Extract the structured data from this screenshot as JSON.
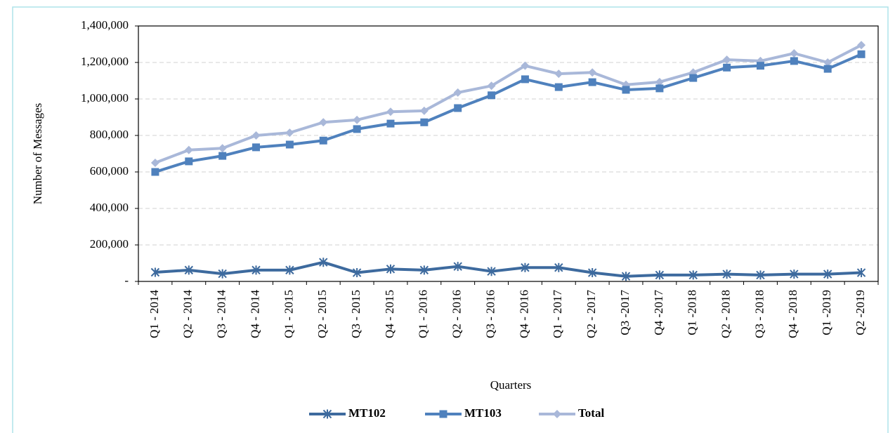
{
  "chart_data": {
    "type": "line",
    "x_label": "Quarters",
    "y_label": "Number of Messages",
    "categories": [
      "Q1 - 2014",
      "Q2 - 2014",
      "Q3 - 2014",
      "Q4 - 2014",
      "Q1 - 2015",
      "Q2 - 2015",
      "Q3 - 2015",
      "Q4 - 2015",
      "Q1 - 2016",
      "Q2 - 2016",
      "Q3 - 2016",
      "Q4 - 2016",
      "Q1 - 2017",
      "Q2 - 2017",
      "Q3 -2017",
      "Q4 -2017",
      "Q1 -2018",
      "Q2 - 2018",
      "Q3 - 2018",
      "Q4 - 2018",
      "Q1 -2019",
      "Q2 -2019"
    ],
    "series": [
      {
        "name": "MT102",
        "color": "#3d6a9e",
        "marker": "star",
        "values": [
          50000,
          62000,
          42000,
          62000,
          62000,
          105000,
          48000,
          68000,
          62000,
          82000,
          55000,
          76000,
          76000,
          48000,
          28000,
          35000,
          35000,
          40000,
          35000,
          40000,
          40000,
          48000
        ]
      },
      {
        "name": "MT103",
        "color": "#4f81bd",
        "marker": "square",
        "values": [
          600000,
          658000,
          688000,
          735000,
          750000,
          772000,
          835000,
          865000,
          872000,
          950000,
          1020000,
          1108000,
          1065000,
          1092000,
          1050000,
          1058000,
          1115000,
          1172000,
          1182000,
          1208000,
          1165000,
          1245000
        ]
      },
      {
        "name": "Total",
        "color": "#a9b8d9",
        "marker": "diamond",
        "values": [
          650000,
          720000,
          730000,
          800000,
          815000,
          872000,
          885000,
          930000,
          935000,
          1035000,
          1072000,
          1182000,
          1138000,
          1145000,
          1078000,
          1093000,
          1145000,
          1215000,
          1208000,
          1250000,
          1200000,
          1295000
        ]
      }
    ],
    "ylim": [
      0,
      1400000
    ],
    "yticks": [
      {
        "value": 0,
        "label": "-"
      },
      {
        "value": 200000,
        "label": "200,000"
      },
      {
        "value": 400000,
        "label": "400,000"
      },
      {
        "value": 600000,
        "label": "600,000"
      },
      {
        "value": 800000,
        "label": "800,000"
      },
      {
        "value": 1000000,
        "label": "1,000,000"
      },
      {
        "value": 1200000,
        "label": "1,200,000"
      },
      {
        "value": 1400000,
        "label": "1,400,000"
      }
    ],
    "grid": true,
    "legend": "bottom"
  }
}
